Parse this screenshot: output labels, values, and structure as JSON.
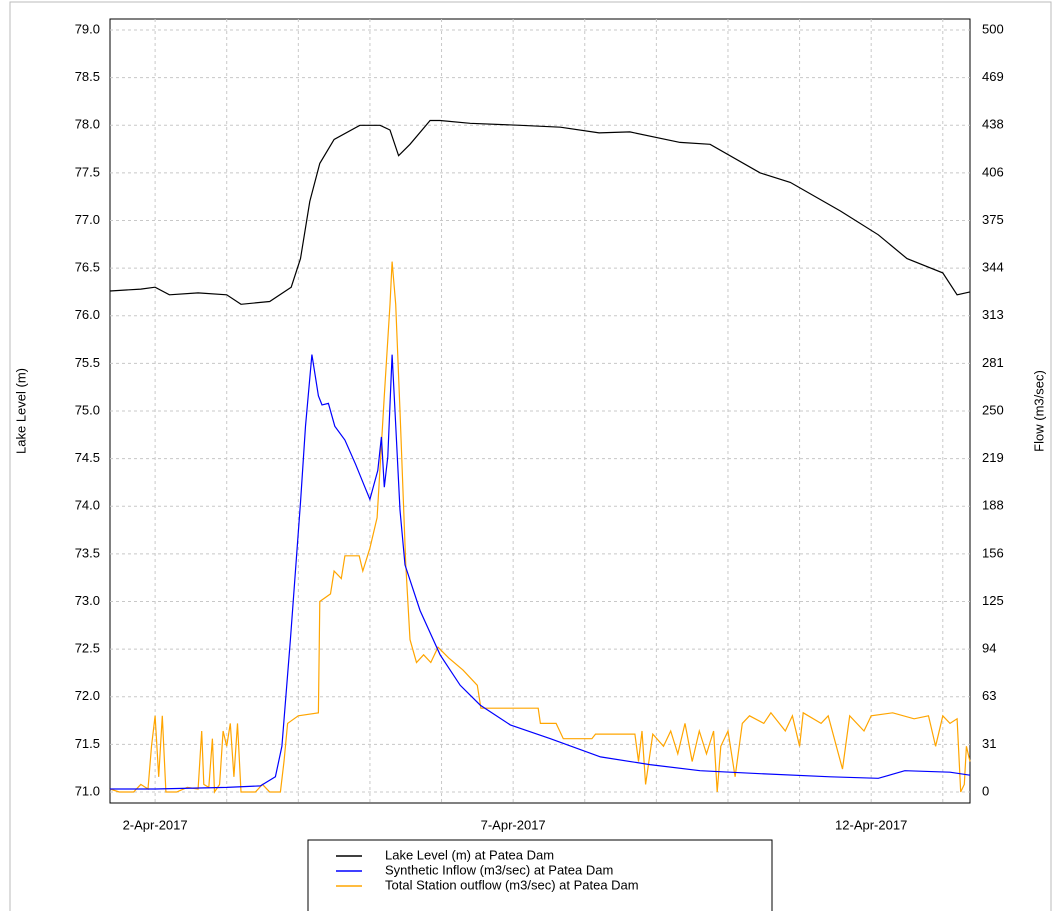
{
  "chart_data": {
    "type": "line",
    "y_label": "Lake Level (m)",
    "y2_label": "Flow (m3/sec)",
    "xlim": [
      -0.63,
      11.38
    ],
    "xticks": [
      {
        "value": 0,
        "label": "2-Apr-2017"
      },
      {
        "value": 5,
        "label": "7-Apr-2017"
      },
      {
        "value": 10,
        "label": "12-Apr-2017"
      }
    ],
    "xminor_ticks": [
      1,
      2,
      3,
      4,
      6,
      7,
      8,
      9,
      11
    ],
    "ylim": [
      71,
      79
    ],
    "yticks": [
      {
        "value": 71,
        "label": "71.0"
      },
      71.5,
      {
        "value": 72,
        "label": "72.0"
      },
      72.5,
      {
        "value": 73,
        "label": "73.0"
      },
      73.5,
      {
        "value": 74,
        "label": "74.0"
      },
      74.5,
      {
        "value": 75,
        "label": "75.0"
      },
      75.5,
      {
        "value": 76,
        "label": "76.0"
      },
      76.5,
      {
        "value": 77,
        "label": "77.0"
      },
      77.5,
      {
        "value": 78,
        "label": "78.0"
      },
      78.5,
      {
        "value": 79,
        "label": "79.0"
      }
    ],
    "y2lim": [
      0,
      500
    ],
    "y2ticks": [
      0,
      {
        "value": 31.25,
        "label": "31"
      },
      {
        "value": 62.5,
        "label": "63"
      },
      {
        "value": 93.75,
        "label": "94"
      },
      125,
      {
        "value": 156.25,
        "label": "156"
      },
      {
        "value": 187.5,
        "label": "188"
      },
      {
        "value": 218.75,
        "label": "219"
      },
      250,
      {
        "value": 281.25,
        "label": "281"
      },
      {
        "value": 312.5,
        "label": "313"
      },
      {
        "value": 343.75,
        "label": "344"
      },
      375,
      {
        "value": 406.25,
        "label": "406"
      },
      {
        "value": 437.5,
        "label": "438"
      },
      {
        "value": 468.75,
        "label": "469"
      },
      500
    ],
    "grid": true,
    "legend": "bottom",
    "series": [
      {
        "name": "Lake Level (m) at Patea Dam",
        "color": "#000000",
        "axis": "y",
        "x": [
          -0.63,
          -0.2,
          0,
          0.2,
          0.6,
          1.0,
          1.2,
          1.6,
          1.9,
          2.03,
          2.16,
          2.3,
          2.5,
          2.86,
          3.14,
          3.28,
          3.4,
          3.56,
          3.84,
          3.98,
          4.4,
          5.1,
          5.66,
          6.2,
          6.63,
          7.33,
          7.75,
          8.45,
          8.87,
          9.57,
          10.1,
          10.5,
          11.0,
          11.2,
          11.38
        ],
        "values": [
          76.26,
          76.28,
          76.3,
          76.22,
          76.24,
          76.22,
          76.12,
          76.15,
          76.3,
          76.6,
          77.2,
          77.6,
          77.85,
          78.0,
          78.0,
          77.95,
          77.68,
          77.8,
          78.05,
          78.05,
          78.02,
          78.0,
          77.98,
          77.92,
          77.93,
          77.82,
          77.8,
          77.5,
          77.4,
          77.1,
          76.85,
          76.6,
          76.45,
          76.22,
          76.25
        ]
      },
      {
        "name": "Synthetic Inflow (m3/sec) at Patea Dam",
        "color": "#0000ff",
        "axis": "y2",
        "x": [
          -0.63,
          0,
          1.0,
          1.47,
          1.68,
          1.77,
          1.89,
          2.03,
          2.1,
          2.19,
          2.28,
          2.33,
          2.42,
          2.51,
          2.65,
          2.8,
          2.93,
          3.0,
          3.11,
          3.16,
          3.2,
          3.25,
          3.31,
          3.35,
          3.42,
          3.49,
          3.7,
          3.98,
          4.26,
          4.54,
          4.96,
          5.52,
          6.22,
          6.91,
          7.61,
          8.45,
          9.43,
          10.1,
          10.47,
          11.1,
          11.38
        ],
        "values": [
          2,
          2,
          3,
          4,
          10,
          30,
          100,
          190,
          240,
          287,
          260,
          254,
          255,
          240,
          231,
          215,
          200,
          192,
          211,
          233,
          200,
          220,
          287,
          250,
          185,
          149,
          119,
          90,
          70,
          57,
          44,
          35,
          23,
          18,
          14,
          12,
          10,
          9,
          14,
          13,
          11
        ]
      },
      {
        "name": "Total Station outflow (m3/sec) at Patea Dam",
        "color": "#ffa500",
        "axis": "y2",
        "x": [
          -0.63,
          -0.5,
          -0.3,
          -0.2,
          -0.1,
          -0.05,
          0.0,
          0.05,
          0.1,
          0.15,
          0.3,
          0.45,
          0.6,
          0.65,
          0.68,
          0.75,
          0.8,
          0.83,
          0.9,
          0.95,
          1.0,
          1.05,
          1.1,
          1.15,
          1.2,
          1.4,
          1.5,
          1.6,
          1.75,
          1.8,
          1.85,
          2.0,
          2.28,
          2.3,
          2.45,
          2.5,
          2.6,
          2.65,
          2.85,
          2.9,
          3.0,
          3.1,
          3.2,
          3.28,
          3.31,
          3.36,
          3.42,
          3.5,
          3.56,
          3.65,
          3.75,
          3.85,
          3.95,
          4.1,
          4.3,
          4.5,
          4.55,
          5.35,
          5.38,
          5.6,
          5.7,
          6.1,
          6.15,
          6.7,
          6.75,
          6.8,
          6.85,
          6.95,
          7.1,
          7.2,
          7.3,
          7.4,
          7.5,
          7.6,
          7.7,
          7.8,
          7.85,
          7.9,
          8.0,
          8.1,
          8.2,
          8.3,
          8.5,
          8.6,
          8.8,
          8.9,
          9.0,
          9.05,
          9.3,
          9.4,
          9.6,
          9.7,
          9.9,
          10.0,
          10.3,
          10.6,
          10.8,
          10.9,
          11.0,
          11.1,
          11.2,
          11.25,
          11.3,
          11.33,
          11.38
        ],
        "values": [
          2,
          0,
          0,
          5,
          2,
          30,
          50,
          10,
          50,
          0,
          0,
          3,
          2,
          40,
          5,
          3,
          35,
          0,
          5,
          40,
          30,
          45,
          10,
          45,
          0,
          0,
          5,
          0,
          0,
          20,
          45,
          50,
          52,
          125,
          130,
          145,
          140,
          155,
          155,
          145,
          160,
          180,
          260,
          320,
          348,
          320,
          250,
          150,
          100,
          85,
          90,
          85,
          95,
          88,
          80,
          70,
          55,
          55,
          45,
          45,
          35,
          35,
          38,
          38,
          20,
          40,
          5,
          38,
          30,
          40,
          25,
          45,
          20,
          40,
          25,
          40,
          0,
          30,
          40,
          10,
          45,
          50,
          45,
          52,
          40,
          50,
          30,
          52,
          45,
          50,
          15,
          50,
          40,
          50,
          52,
          48,
          50,
          30,
          50,
          45,
          48,
          0,
          5,
          30,
          20
        ]
      }
    ]
  }
}
